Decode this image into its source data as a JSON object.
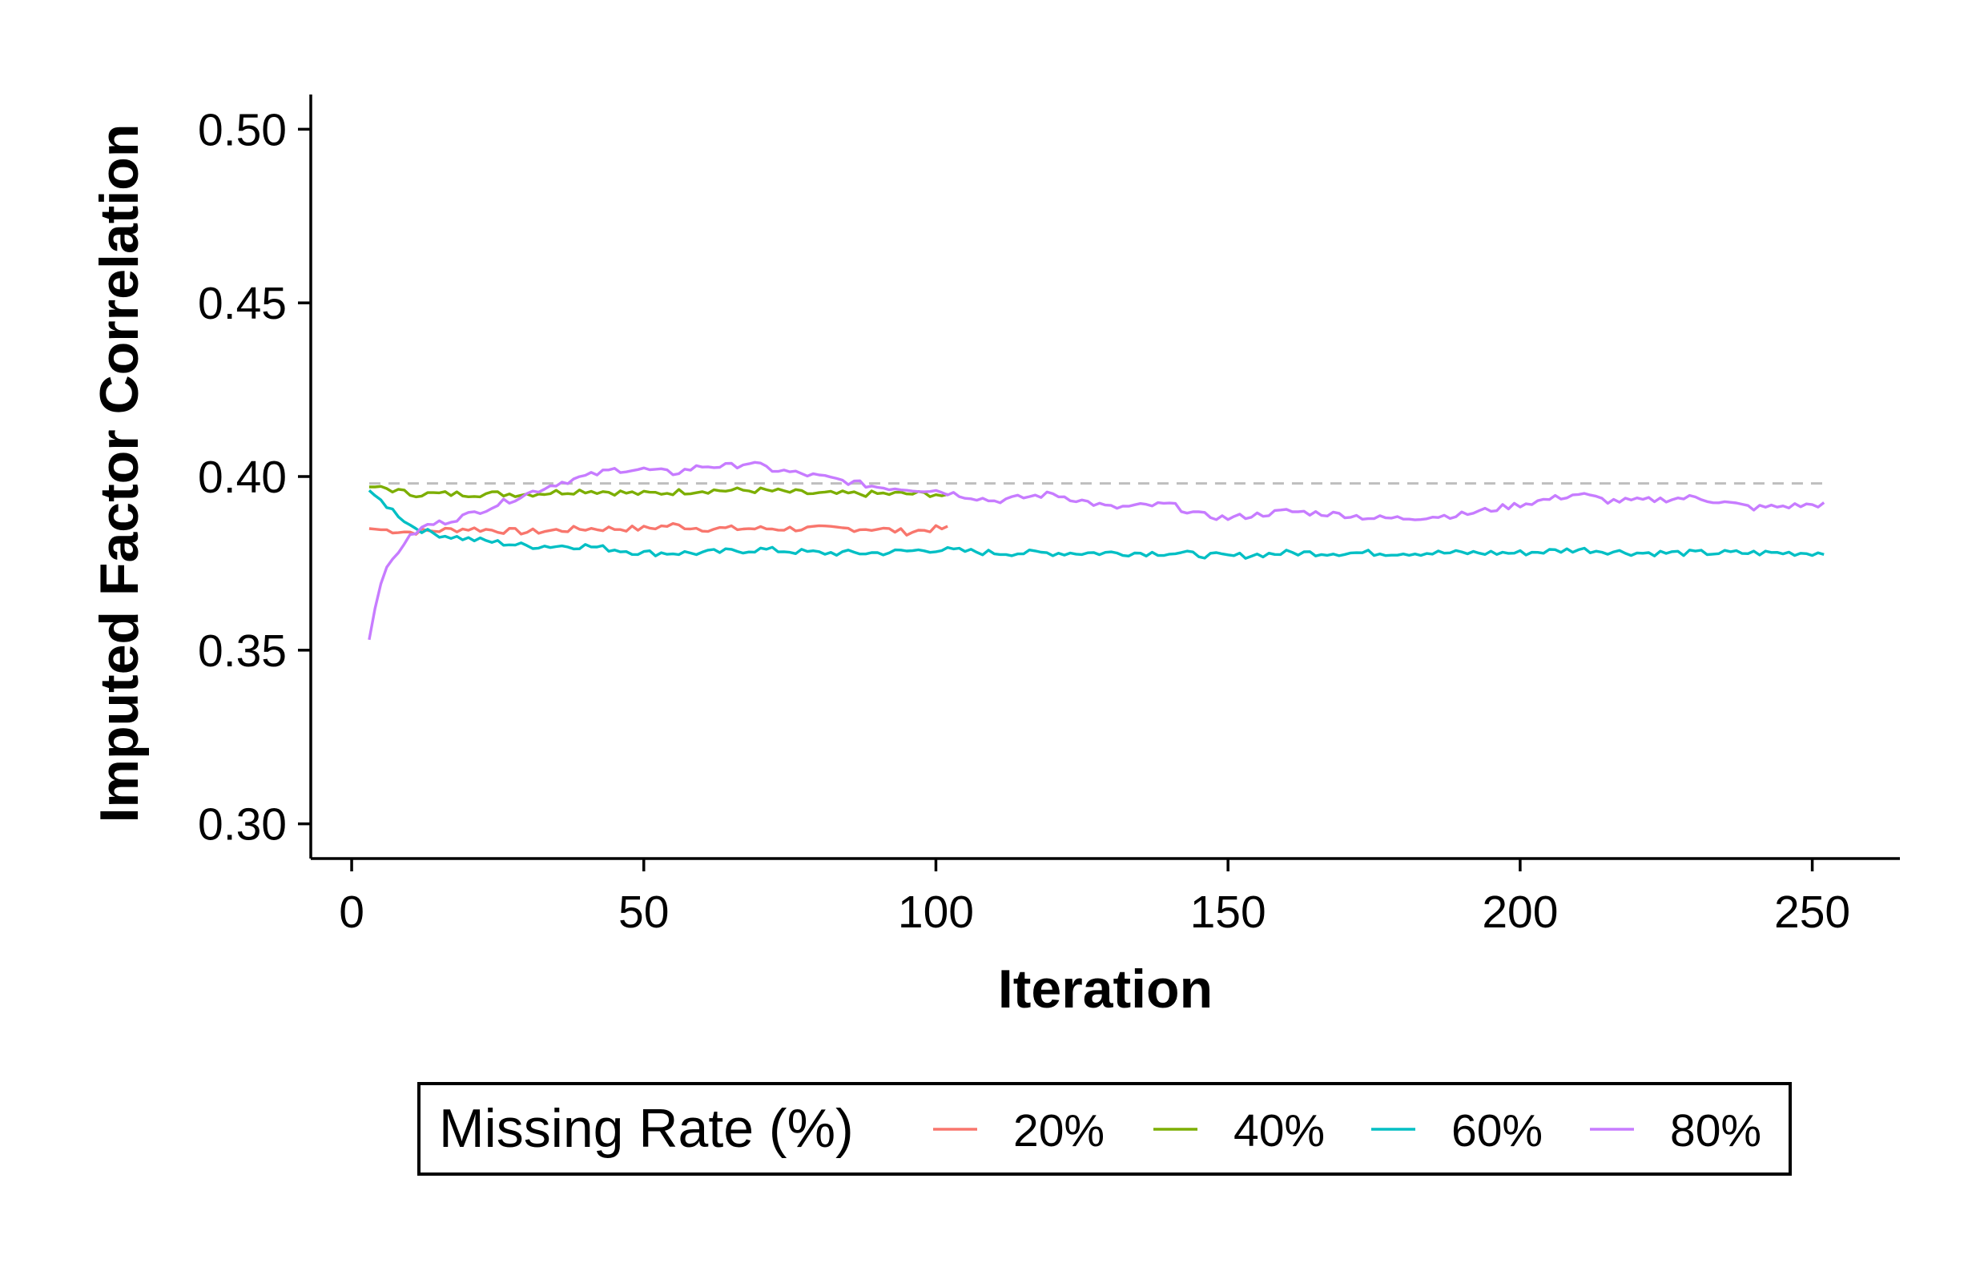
{
  "chart_data": {
    "type": "line",
    "title": "",
    "xlabel": "Iteration",
    "ylabel": "Imputed Factor Correlation",
    "xlim": [
      -7,
      265
    ],
    "ylim": [
      0.29,
      0.51
    ],
    "x_ticks": [
      0,
      50,
      100,
      150,
      200,
      250
    ],
    "x_tick_labels": [
      "0",
      "50",
      "100",
      "150",
      "200",
      "250"
    ],
    "y_ticks": [
      0.3,
      0.35,
      0.4,
      0.45,
      0.5
    ],
    "y_tick_labels": [
      "0.30",
      "0.35",
      "0.40",
      "0.45",
      "0.50"
    ],
    "grid": false,
    "legend": {
      "title": "Missing Rate (%)",
      "placement": "bottom"
    },
    "reference_line": {
      "y": 0.398,
      "style": "dashed",
      "color": "#BEBEBE"
    },
    "series": [
      {
        "name": "20%",
        "color": "#F8766D",
        "x": [
          3,
          10,
          20,
          30,
          40,
          50,
          55,
          60,
          70,
          80,
          90,
          95,
          100,
          102
        ],
        "y": [
          0.385,
          0.384,
          0.385,
          0.384,
          0.385,
          0.385,
          0.386,
          0.385,
          0.385,
          0.385,
          0.385,
          0.384,
          0.385,
          0.385
        ]
      },
      {
        "name": "40%",
        "color": "#7CAE00",
        "x": [
          3,
          5,
          10,
          15,
          20,
          25,
          30,
          40,
          50,
          60,
          70,
          80,
          90,
          95,
          100,
          102
        ],
        "y": [
          0.397,
          0.397,
          0.395,
          0.395,
          0.395,
          0.395,
          0.395,
          0.396,
          0.395,
          0.396,
          0.396,
          0.395,
          0.395,
          0.395,
          0.395,
          0.394
        ]
      },
      {
        "name": "60%",
        "color": "#00BFC4",
        "x": [
          3,
          5,
          8,
          10,
          13,
          16,
          20,
          25,
          30,
          40,
          50,
          55,
          60,
          70,
          80,
          90,
          100,
          110,
          120,
          130,
          140,
          150,
          160,
          170,
          180,
          190,
          200,
          210,
          220,
          230,
          240,
          252
        ],
        "y": [
          0.396,
          0.393,
          0.389,
          0.386,
          0.384,
          0.383,
          0.382,
          0.381,
          0.38,
          0.38,
          0.378,
          0.378,
          0.378,
          0.379,
          0.378,
          0.378,
          0.379,
          0.378,
          0.378,
          0.378,
          0.378,
          0.377,
          0.378,
          0.378,
          0.378,
          0.378,
          0.378,
          0.379,
          0.378,
          0.378,
          0.378,
          0.378
        ]
      },
      {
        "name": "80%",
        "color": "#C77CFF",
        "x": [
          3,
          4,
          5,
          7,
          9,
          11,
          13,
          16,
          20,
          25,
          30,
          35,
          40,
          45,
          50,
          55,
          60,
          65,
          68,
          72,
          80,
          90,
          100,
          110,
          120,
          125,
          130,
          140,
          145,
          150,
          160,
          170,
          175,
          180,
          190,
          200,
          210,
          215,
          220,
          230,
          240,
          252
        ],
        "y": [
          0.353,
          0.362,
          0.37,
          0.376,
          0.381,
          0.384,
          0.386,
          0.387,
          0.389,
          0.392,
          0.395,
          0.398,
          0.4,
          0.402,
          0.402,
          0.401,
          0.403,
          0.403,
          0.404,
          0.402,
          0.4,
          0.397,
          0.396,
          0.393,
          0.395,
          0.393,
          0.391,
          0.392,
          0.389,
          0.388,
          0.39,
          0.389,
          0.388,
          0.388,
          0.389,
          0.392,
          0.395,
          0.393,
          0.393,
          0.394,
          0.391,
          0.392
        ]
      }
    ]
  }
}
